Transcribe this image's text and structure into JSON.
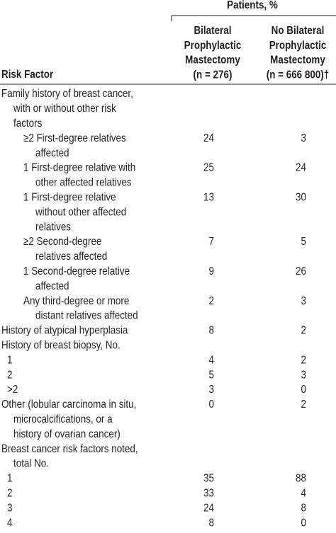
{
  "header": {
    "group": "Patients, %",
    "columns": [
      "Risk Factor",
      [
        "Bilateral",
        "Prophylactic",
        "Mastectomy",
        "(n = 276)"
      ],
      [
        "No Bilateral",
        "Prophylactic",
        "Mastectomy",
        "(n = 666 800)†"
      ]
    ]
  },
  "table": {
    "rows": [
      {
        "level": 0,
        "label": [
          "Family history of breast cancer,",
          "with or without other risk",
          "factors"
        ]
      },
      {
        "level": 1,
        "label": [
          "≥2 First-degree relatives",
          "affected"
        ],
        "values": [
          24,
          3
        ]
      },
      {
        "level": 1,
        "label": [
          "1 First-degree relative with",
          "other affected relatives"
        ],
        "values": [
          25,
          24
        ]
      },
      {
        "level": 1,
        "label": [
          "1 First-degree relative",
          "without other affected",
          "relatives"
        ],
        "values": [
          13,
          30
        ]
      },
      {
        "level": 1,
        "label": [
          "≥2 Second-degree",
          "relatives affected"
        ],
        "values": [
          7,
          5
        ]
      },
      {
        "level": 1,
        "label": [
          "1 Second-degree relative",
          "affected"
        ],
        "values": [
          9,
          26
        ]
      },
      {
        "level": 1,
        "label": [
          "Any third-degree or more",
          "distant relatives affected"
        ],
        "values": [
          2,
          3
        ]
      },
      {
        "level": 0,
        "label": [
          "History of atypical hyperplasia"
        ],
        "values": [
          8,
          2
        ]
      },
      {
        "level": 0,
        "label": [
          "History of breast biopsy, No."
        ]
      },
      {
        "level": 1,
        "label": [
          "1"
        ],
        "values": [
          4,
          2
        ]
      },
      {
        "level": 1,
        "label": [
          "2"
        ],
        "values": [
          5,
          3
        ]
      },
      {
        "level": 1,
        "label": [
          ">2"
        ],
        "values": [
          3,
          0
        ]
      },
      {
        "level": 0,
        "label": [
          "Other (lobular carcinoma in situ,",
          "microcalcifications, or a",
          "history of ovarian cancer)"
        ],
        "values": [
          0,
          2
        ]
      },
      {
        "level": 0,
        "label": [
          "Breast cancer risk factors noted,",
          "total No."
        ]
      },
      {
        "level": 1,
        "label": [
          "1"
        ],
        "values": [
          35,
          88
        ]
      },
      {
        "level": 1,
        "label": [
          "2"
        ],
        "values": [
          33,
          4
        ]
      },
      {
        "level": 1,
        "label": [
          "3"
        ],
        "values": [
          24,
          8
        ]
      },
      {
        "level": 1,
        "label": [
          "4"
        ],
        "values": [
          8,
          0
        ]
      }
    ]
  }
}
